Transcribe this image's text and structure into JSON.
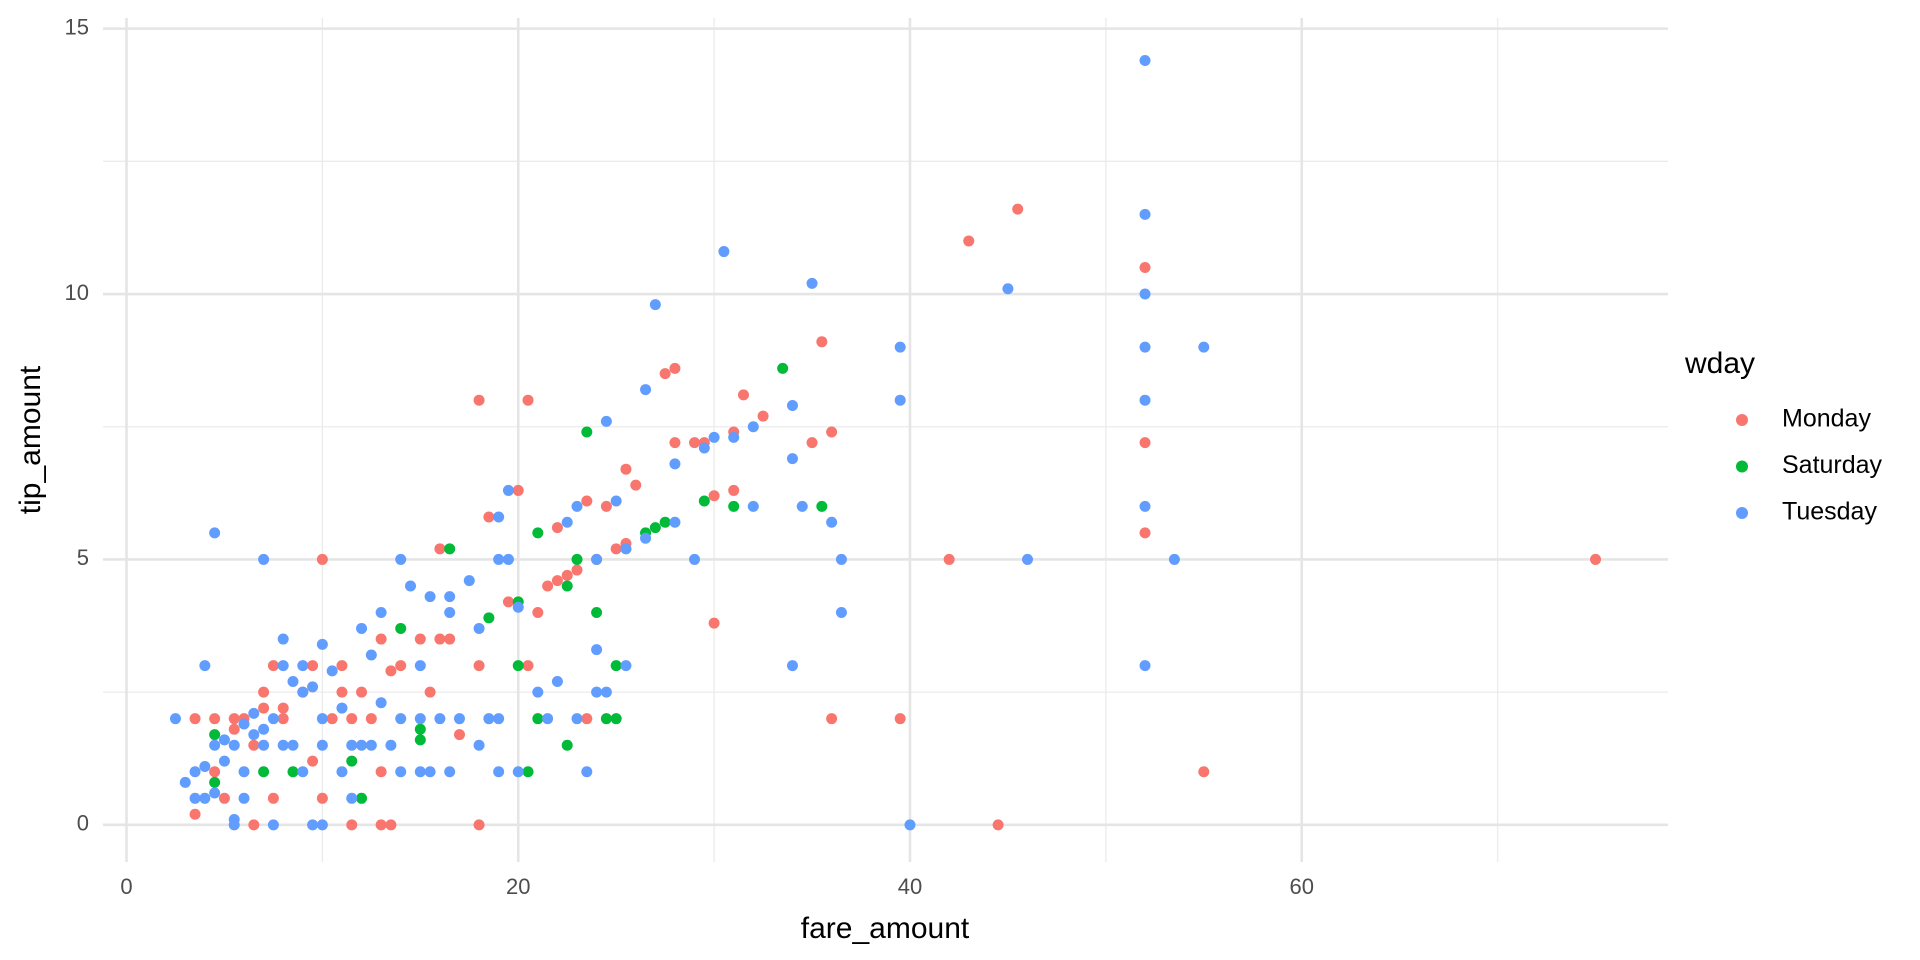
{
  "chart_data": {
    "type": "scatter",
    "xlabel": "fare_amount",
    "ylabel": "tip_amount",
    "legend_title": "wday",
    "xlim": [
      -1.2,
      78.7
    ],
    "ylim": [
      -0.7,
      15.2
    ],
    "xticks": [
      0,
      20,
      40,
      60
    ],
    "yticks": [
      0,
      5,
      10,
      15
    ],
    "grid": true,
    "legend": "right",
    "series": [
      {
        "name": "Monday",
        "color": "#F8766D",
        "x": [
          3.5,
          3.5,
          4.5,
          4.5,
          5,
          5.5,
          5.5,
          6,
          6.5,
          6.5,
          7,
          7,
          7.5,
          7.5,
          8,
          8,
          9,
          9.5,
          9.5,
          10,
          10,
          10.5,
          11,
          11,
          11.5,
          11.5,
          12,
          12.5,
          13,
          13,
          13,
          13.5,
          13.5,
          14,
          15,
          15.5,
          16,
          16,
          16.5,
          17,
          18,
          18,
          18,
          18.5,
          19.5,
          20,
          20.5,
          20.5,
          21,
          21.5,
          22,
          22,
          22.5,
          23,
          23.5,
          23.5,
          24,
          24.5,
          25,
          25.5,
          25.5,
          26,
          27.5,
          28,
          28,
          29,
          29.5,
          30,
          30,
          31,
          31,
          31.5,
          32.5,
          35,
          35.5,
          36,
          36,
          39.5,
          42,
          43,
          44.5,
          45.5,
          52,
          52,
          52,
          55,
          75
        ],
        "values": [
          2,
          0.2,
          1,
          2,
          0.5,
          1.8,
          2,
          2,
          1.5,
          0,
          2.5,
          2.2,
          3,
          0.5,
          2,
          2.2,
          2.5,
          1.2,
          3,
          5,
          0.5,
          2,
          2.5,
          3,
          2,
          0,
          2.5,
          2,
          3.5,
          1,
          0,
          0,
          2.9,
          3,
          3.5,
          2.5,
          5.2,
          3.5,
          3.5,
          1.7,
          8,
          3,
          0,
          5.8,
          4.2,
          6.3,
          8,
          3,
          4,
          4.5,
          5.6,
          4.6,
          4.7,
          4.8,
          6.1,
          2,
          5,
          6,
          5.2,
          5.3,
          6.7,
          6.4,
          8.5,
          8.6,
          7.2,
          7.2,
          7.2,
          6.2,
          3.8,
          6.3,
          7.4,
          8.1,
          7.7,
          7.2,
          9.1,
          7.4,
          2,
          2,
          5,
          11,
          0,
          11.6,
          10.5,
          7.2,
          5.5,
          1,
          5
        ]
      },
      {
        "name": "Saturday",
        "color": "#00BA38",
        "x": [
          4.5,
          4.5,
          7,
          8.5,
          11.5,
          12,
          14,
          15,
          15,
          16.5,
          18.5,
          20,
          20,
          20.5,
          21,
          21,
          22.5,
          22.5,
          23,
          23.5,
          24,
          24.5,
          25,
          25,
          26.5,
          27,
          27.5,
          29.5,
          31,
          33.5,
          35.5
        ],
        "values": [
          1.7,
          0.8,
          1,
          1,
          1.2,
          0.5,
          3.7,
          1.8,
          1.6,
          5.2,
          3.9,
          4.2,
          3,
          1,
          5.5,
          2,
          4.5,
          1.5,
          5,
          7.4,
          4,
          2,
          2,
          3,
          5.5,
          5.6,
          5.7,
          6.1,
          6,
          8.6,
          6
        ]
      },
      {
        "name": "Tuesday",
        "color": "#619CFF",
        "x": [
          2.5,
          3,
          3.5,
          3.5,
          4,
          4,
          4,
          4.5,
          4.5,
          4.5,
          5,
          5,
          5.5,
          5.5,
          5.5,
          6,
          6,
          6,
          6.5,
          6.5,
          7,
          7,
          7,
          7.5,
          7.5,
          8,
          8,
          8,
          8.5,
          8.5,
          9,
          9,
          9,
          9.5,
          9.5,
          10,
          10,
          10,
          10,
          10.5,
          11,
          11,
          11.5,
          11.5,
          12,
          12,
          12.5,
          12.5,
          13,
          13,
          13.5,
          14,
          14,
          14,
          14.5,
          15,
          15,
          15,
          15.5,
          15.5,
          16,
          16.5,
          16.5,
          16.5,
          17,
          17.5,
          18,
          18,
          18.5,
          19,
          19,
          19,
          19,
          19.5,
          19.5,
          20,
          20,
          21,
          21.5,
          22,
          22.5,
          23,
          23,
          23.5,
          24,
          24,
          24,
          24.5,
          24.5,
          25,
          25.5,
          25.5,
          26.5,
          26.5,
          27,
          28,
          28,
          29,
          29.5,
          30,
          30.5,
          31,
          32,
          32,
          34,
          34,
          34,
          34.5,
          35,
          36,
          36.5,
          36.5,
          39.5,
          39.5,
          40,
          45,
          46,
          52,
          52,
          52,
          52,
          52,
          52,
          52,
          53.5,
          55
        ],
        "values": [
          2,
          0.8,
          1,
          0.5,
          3,
          1.1,
          0.5,
          5.5,
          1.5,
          0.6,
          1.2,
          1.6,
          0.1,
          0,
          1.5,
          0.5,
          1.9,
          1,
          1.7,
          2.1,
          5,
          1.5,
          1.8,
          0,
          2,
          3.5,
          1.5,
          3,
          2.7,
          1.5,
          3,
          2.5,
          1,
          0,
          2.6,
          3.4,
          2,
          0,
          1.5,
          2.9,
          2.2,
          1,
          1.5,
          0.5,
          1.5,
          3.7,
          3.2,
          1.5,
          2.3,
          4,
          1.5,
          5,
          2,
          1,
          4.5,
          3,
          1,
          2,
          4.3,
          1,
          2,
          4,
          4.3,
          1,
          2,
          4.6,
          3.7,
          1.5,
          2,
          5.8,
          5,
          2,
          1,
          6.3,
          5,
          4.1,
          1,
          2.5,
          2,
          2.7,
          5.7,
          6,
          2,
          1,
          5,
          3.3,
          2.5,
          7.6,
          2.5,
          6.1,
          5.2,
          3,
          5.4,
          8.2,
          9.8,
          5.7,
          6.8,
          5,
          7.1,
          7.3,
          10.8,
          7.3,
          7.5,
          6,
          7.9,
          6.9,
          3,
          6,
          10.2,
          5.7,
          5,
          4,
          9,
          8,
          0,
          10.1,
          5,
          14.4,
          11.5,
          10,
          9,
          8,
          6,
          3,
          5,
          9
        ]
      }
    ]
  }
}
